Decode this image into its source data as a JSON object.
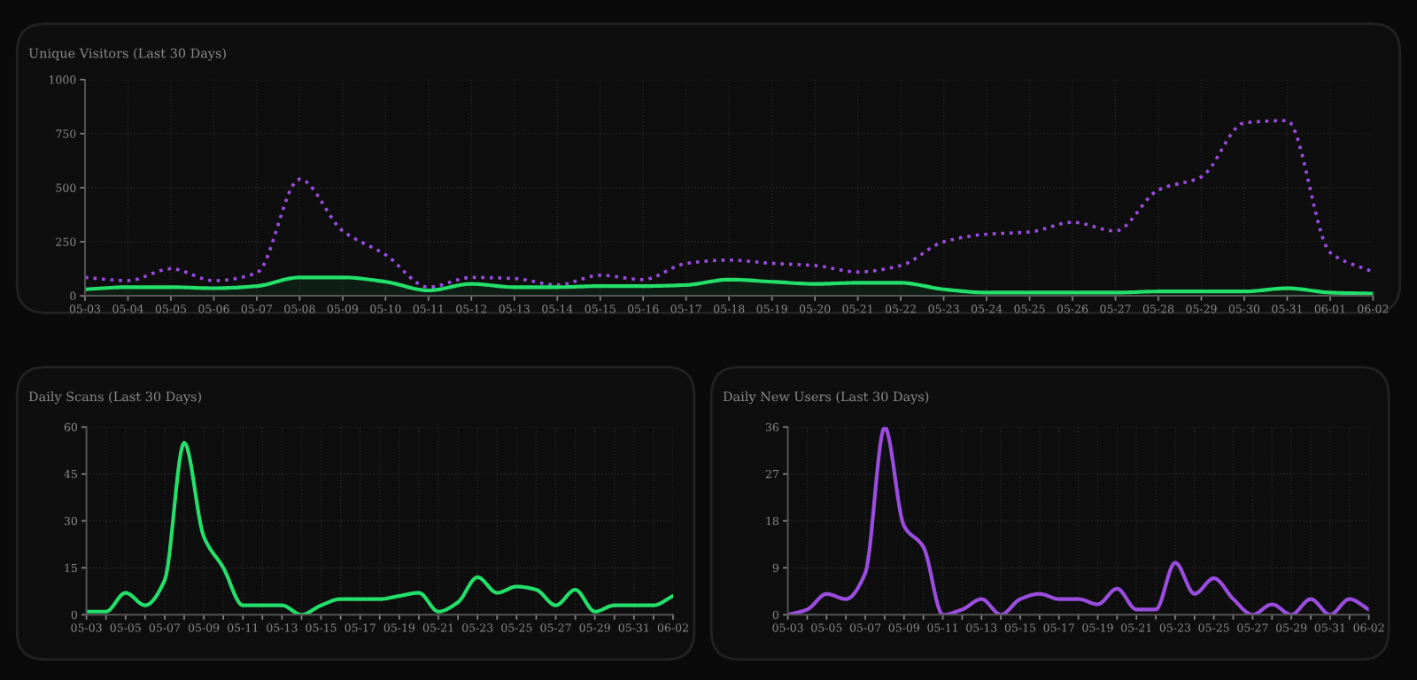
{
  "chart_data": [
    {
      "type": "line",
      "title": "Unique Visitors (Last 30 Days)",
      "categories": [
        "05-03",
        "05-04",
        "05-05",
        "05-06",
        "05-07",
        "05-08",
        "05-09",
        "05-10",
        "05-11",
        "05-12",
        "05-13",
        "05-14",
        "05-15",
        "05-16",
        "05-17",
        "05-18",
        "05-19",
        "05-20",
        "05-21",
        "05-22",
        "05-23",
        "05-24",
        "05-25",
        "05-26",
        "05-27",
        "05-28",
        "05-29",
        "05-30",
        "05-31",
        "06-01",
        "06-02"
      ],
      "series": [
        {
          "color": "#9b4de0",
          "line_style": "dotted",
          "values": [
            85,
            70,
            125,
            70,
            105,
            540,
            300,
            190,
            40,
            85,
            80,
            50,
            95,
            75,
            150,
            165,
            150,
            140,
            110,
            140,
            250,
            285,
            295,
            340,
            300,
            490,
            550,
            800,
            810,
            200,
            110
          ]
        },
        {
          "type": "area",
          "color": "#22e06a",
          "line_style": "solid",
          "values": [
            30,
            40,
            40,
            35,
            45,
            85,
            85,
            65,
            25,
            55,
            40,
            40,
            45,
            45,
            50,
            75,
            65,
            55,
            60,
            60,
            30,
            15,
            15,
            15,
            15,
            20,
            20,
            20,
            35,
            15,
            10
          ]
        }
      ],
      "ylim": [
        0,
        1000
      ],
      "yticks": [
        0,
        250,
        500,
        750,
        1000
      ],
      "grid": true
    },
    {
      "type": "line",
      "title": "Daily Scans (Last 30 Days)",
      "categories": [
        "05-03",
        null,
        "05-05",
        null,
        "05-07",
        null,
        "05-09",
        null,
        "05-11",
        null,
        "05-13",
        null,
        "05-15",
        null,
        "05-17",
        null,
        "05-19",
        null,
        "05-21",
        null,
        "05-23",
        null,
        "05-25",
        null,
        "05-27",
        null,
        "05-29",
        null,
        "05-31",
        null,
        "06-02"
      ],
      "series": [
        {
          "color": "#22e06a",
          "line_style": "solid",
          "values": [
            1,
            1,
            7,
            3,
            11,
            55,
            25,
            15,
            3,
            3,
            3,
            0,
            3,
            5,
            5,
            5,
            6,
            7,
            1,
            4,
            12,
            7,
            9,
            8,
            3,
            8,
            1,
            3,
            3,
            3,
            6
          ]
        }
      ],
      "ylim": [
        0,
        60
      ],
      "yticks": [
        0,
        15,
        30,
        45,
        60
      ],
      "grid": true
    },
    {
      "type": "line",
      "title": "Daily New Users (Last 30 Days)",
      "categories": [
        "05-03",
        null,
        "05-05",
        null,
        "05-07",
        null,
        "05-09",
        null,
        "05-11",
        null,
        "05-13",
        null,
        "05-15",
        null,
        "05-17",
        null,
        "05-19",
        null,
        "05-21",
        null,
        "05-23",
        null,
        "05-25",
        null,
        "05-27",
        null,
        "05-29",
        null,
        "05-31",
        null,
        "06-02"
      ],
      "series": [
        {
          "color": "#9b4de0",
          "line_style": "solid",
          "values": [
            0,
            1,
            4,
            3,
            8,
            36,
            17,
            13,
            0,
            1,
            3,
            0,
            3,
            4,
            3,
            3,
            2,
            5,
            1,
            1,
            10,
            4,
            7,
            3,
            0,
            2,
            0,
            3,
            0,
            3,
            1
          ]
        }
      ],
      "ylim": [
        0,
        36
      ],
      "yticks": [
        0,
        9,
        18,
        27,
        36
      ],
      "grid": true
    }
  ]
}
